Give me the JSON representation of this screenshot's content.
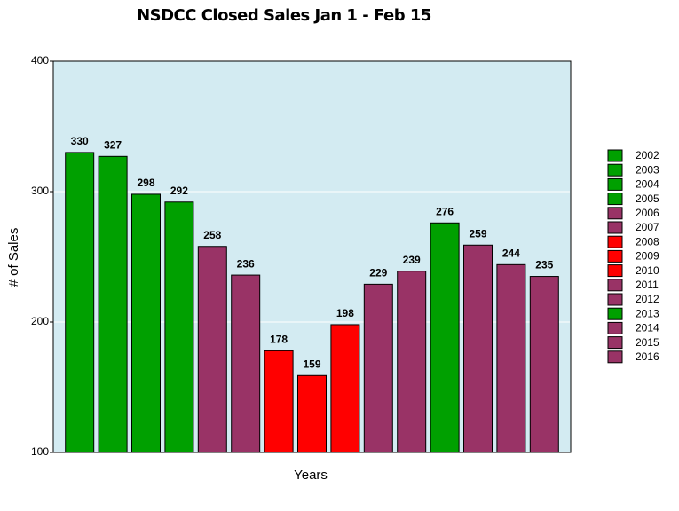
{
  "chart_data": {
    "type": "bar",
    "title": "NSDCC Closed Sales Jan 1 - Feb 15",
    "xlabel": "Years",
    "ylabel": "# of Sales",
    "categories": [
      "2002",
      "2003",
      "2004",
      "2005",
      "2006",
      "2007",
      "2008",
      "2009",
      "2010",
      "2011",
      "2012",
      "2013",
      "2014",
      "2015",
      "2016"
    ],
    "values": [
      330,
      327,
      298,
      292,
      258,
      236,
      178,
      159,
      198,
      229,
      239,
      276,
      259,
      244,
      235
    ],
    "colors": [
      "#00a000",
      "#00a000",
      "#00a000",
      "#00a000",
      "#993366",
      "#993366",
      "#ff0000",
      "#ff0000",
      "#ff0000",
      "#993366",
      "#993366",
      "#00a000",
      "#993366",
      "#993366",
      "#993366"
    ],
    "ylim": [
      100,
      400
    ],
    "yticks": [
      100,
      200,
      300,
      400
    ],
    "grid": true,
    "legend": "right"
  }
}
